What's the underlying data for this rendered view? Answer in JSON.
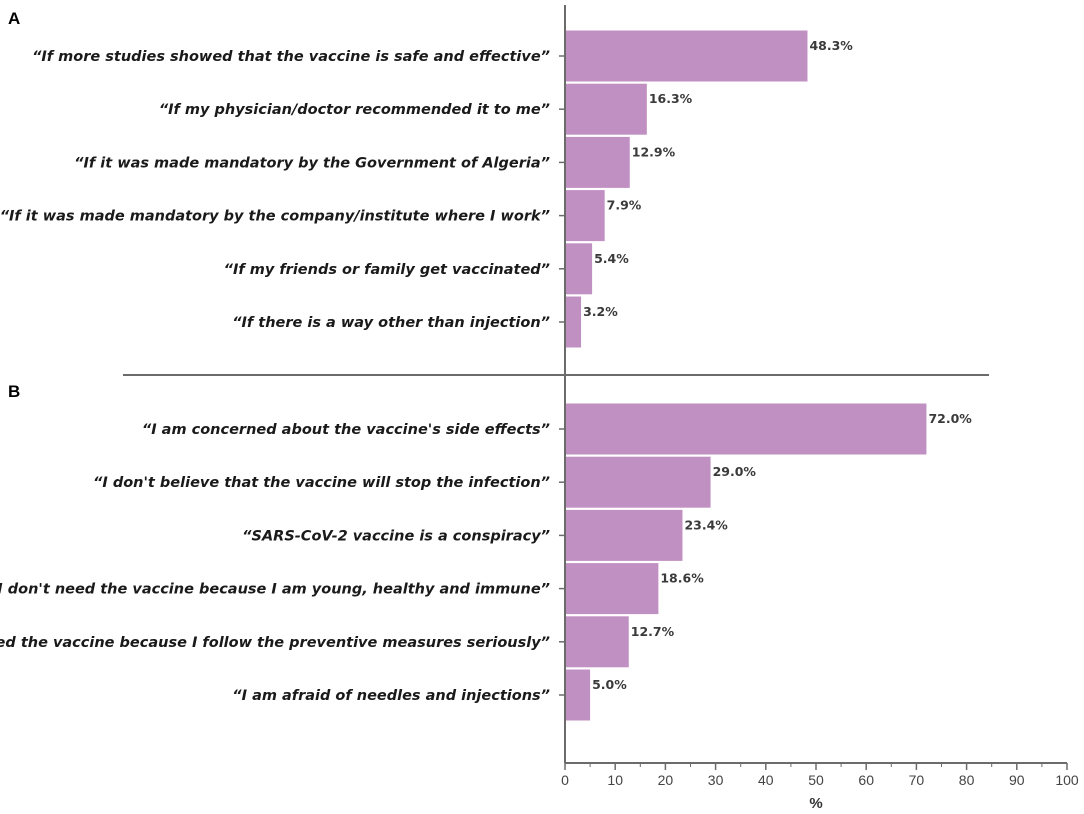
{
  "chart_data": {
    "type": "bar",
    "orientation": "horizontal",
    "xlabel": "%",
    "xlim": [
      0,
      100
    ],
    "xticks": [
      0,
      10,
      20,
      30,
      40,
      50,
      60,
      70,
      80,
      90,
      100
    ],
    "bar_color": "#c190c3",
    "axis_color": "#6b6b6b",
    "grid": false,
    "panels": [
      {
        "label": "A",
        "categories": [
          "“If more studies showed that the vaccine is safe and effective”",
          "“If my physician/doctor recommended it to me”",
          "“If it was made mandatory by the Government of Algeria”",
          "“If it was made mandatory by the company/institute where I work”",
          "“If my friends or family get vaccinated”",
          "“If there is a way other than injection”"
        ],
        "values": [
          48.3,
          16.3,
          12.9,
          7.9,
          5.4,
          3.2
        ],
        "value_labels": [
          "48.3%",
          "16.3%",
          "12.9%",
          "7.9%",
          "5.4%",
          "3.2%"
        ]
      },
      {
        "label": "B",
        "categories": [
          "“I am concerned about the vaccine's side effects”",
          "“I don't believe that the vaccine will stop the infection”",
          "“SARS-CoV-2 vaccine is a conspiracy”",
          "“I don't need the vaccine because I am young, healthy and immune”",
          "“I don't need the vaccine because I follow the preventive measures seriously”",
          "“I am afraid of needles and injections”"
        ],
        "values": [
          72.0,
          29.0,
          23.4,
          18.6,
          12.7,
          5.0
        ],
        "value_labels": [
          "72.0%",
          "29.0%",
          "23.4%",
          "18.6%",
          "12.7%",
          "5.0%"
        ]
      }
    ]
  }
}
